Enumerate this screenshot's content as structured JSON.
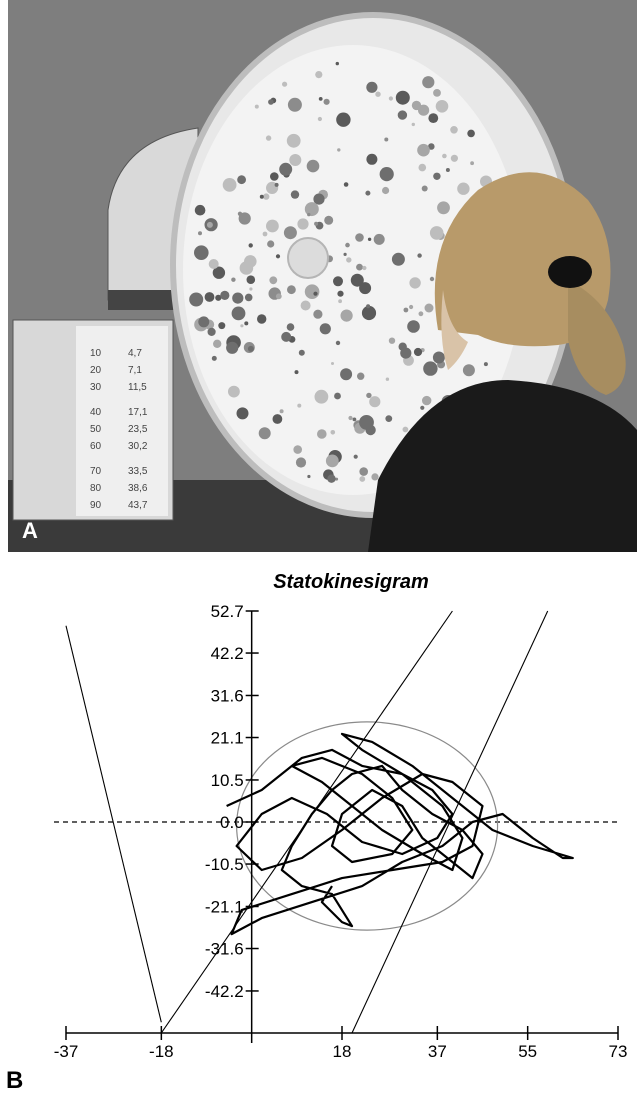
{
  "panel_a": {
    "letter": "A",
    "scale_card_rows": [
      [
        "10",
        "4,7"
      ],
      [
        "20",
        "7,1"
      ],
      [
        "30",
        "11,5"
      ],
      [
        "40",
        "17,1"
      ],
      [
        "50",
        "23,5"
      ],
      [
        "60",
        "30,2"
      ],
      [
        "70",
        "33,5"
      ],
      [
        "80",
        "38,6"
      ],
      [
        "90",
        "43,7"
      ]
    ]
  },
  "panel_b": {
    "letter": "B"
  },
  "chart_data": {
    "type": "line",
    "title": "Statokinesigram",
    "xlabel": "",
    "ylabel": "",
    "x_ticks": [
      "-37",
      "-18",
      "18",
      "37",
      "55",
      "73"
    ],
    "x_tick_values": [
      -37,
      -18,
      18,
      37,
      55,
      73
    ],
    "y_ticks": [
      "52.7",
      "42.2",
      "31.6",
      "21.1",
      "10.5",
      "0.0",
      "-10.5",
      "-21.1",
      "-31.6",
      "-42.2"
    ],
    "y_tick_values": [
      52.7,
      42.2,
      31.6,
      21.1,
      10.5,
      0,
      -10.5,
      -21.1,
      -31.6,
      -42.2
    ],
    "xlim": [
      -37,
      73
    ],
    "ylim": [
      -52.7,
      52.7
    ],
    "grid": false,
    "zero_line": "dashed",
    "circle": {
      "center": [
        23,
        -1
      ],
      "radius": 26
    },
    "series": [
      {
        "points": [
          [
            -5,
            4
          ],
          [
            2,
            8
          ],
          [
            10,
            16
          ],
          [
            16,
            18
          ],
          [
            22,
            14
          ],
          [
            30,
            12
          ],
          [
            36,
            8
          ],
          [
            40,
            2
          ],
          [
            37,
            -4
          ],
          [
            30,
            -8
          ],
          [
            22,
            -5
          ],
          [
            15,
            2
          ],
          [
            8,
            6
          ],
          [
            2,
            2
          ],
          [
            -3,
            -6
          ],
          [
            2,
            -12
          ],
          [
            10,
            -9
          ],
          [
            18,
            -2
          ],
          [
            26,
            6
          ],
          [
            34,
            12
          ],
          [
            40,
            10
          ],
          [
            46,
            4
          ],
          [
            44,
            -6
          ],
          [
            38,
            -10
          ],
          [
            28,
            -12
          ],
          [
            18,
            -14
          ],
          [
            8,
            -18
          ],
          [
            -2,
            -22
          ],
          [
            -4,
            -28
          ],
          [
            2,
            -24
          ],
          [
            12,
            -20
          ],
          [
            22,
            -16
          ],
          [
            30,
            -10
          ],
          [
            38,
            -6
          ],
          [
            44,
            0
          ],
          [
            50,
            2
          ],
          [
            56,
            -4
          ],
          [
            62,
            -9
          ],
          [
            64,
            -9
          ],
          [
            56,
            -6
          ],
          [
            48,
            -2
          ],
          [
            40,
            6
          ],
          [
            32,
            14
          ],
          [
            24,
            20
          ],
          [
            18,
            22
          ],
          [
            22,
            18
          ],
          [
            30,
            12
          ],
          [
            38,
            4
          ],
          [
            42,
            -4
          ],
          [
            40,
            -12
          ],
          [
            34,
            -8
          ],
          [
            26,
            -2
          ],
          [
            20,
            4
          ],
          [
            14,
            10
          ],
          [
            8,
            14
          ],
          [
            14,
            16
          ],
          [
            22,
            12
          ],
          [
            28,
            6
          ],
          [
            32,
            -2
          ],
          [
            28,
            -8
          ],
          [
            20,
            -10
          ],
          [
            16,
            -6
          ],
          [
            18,
            2
          ],
          [
            24,
            8
          ],
          [
            30,
            4
          ],
          [
            34,
            -4
          ],
          [
            40,
            -10
          ],
          [
            44,
            -14
          ],
          [
            46,
            -8
          ],
          [
            42,
            -2
          ],
          [
            36,
            2
          ],
          [
            30,
            8
          ],
          [
            26,
            14
          ],
          [
            20,
            12
          ],
          [
            16,
            8
          ],
          [
            12,
            2
          ],
          [
            8,
            -6
          ],
          [
            6,
            -12
          ],
          [
            10,
            -16
          ],
          [
            16,
            -18
          ],
          [
            18,
            -22
          ],
          [
            20,
            -26
          ],
          [
            18,
            -25
          ],
          [
            14,
            -20
          ],
          [
            16,
            -16
          ]
        ]
      },
      {
        "points": [
          [
            -37,
            49
          ],
          [
            -18,
            -50
          ]
        ]
      },
      {
        "points": [
          [
            -18,
            -52.7
          ],
          [
            40,
            52.7
          ]
        ]
      },
      {
        "points": [
          [
            20,
            -52.7
          ],
          [
            59,
            52.7
          ]
        ]
      }
    ]
  }
}
